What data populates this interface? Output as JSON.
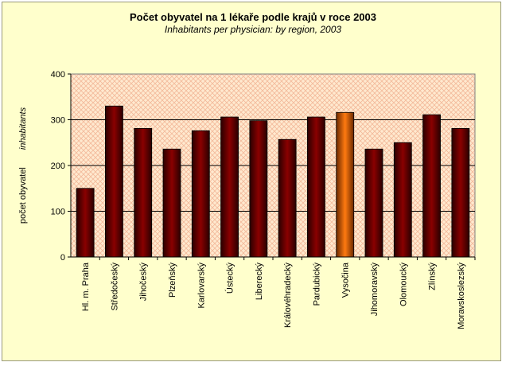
{
  "chart_data": {
    "type": "bar",
    "title": "Počet obyvatel na 1 lékaře podle krajů v roce 2003",
    "subtitle": "Inhabitants per physician: by region, 2003",
    "ylabel": "počet obyvatel",
    "ylabel_en": "inhabitants",
    "ylim": [
      0,
      400
    ],
    "yticks": [
      0,
      100,
      200,
      300,
      400
    ],
    "grid": true,
    "categories": [
      "Hl. m. Praha",
      "Středočeský",
      "Jihočeský",
      "Plzeňský",
      "Karlovarský",
      "Ústecký",
      "Liberecký",
      "Královéhradecký",
      "Pardubický",
      "Vysočina",
      "Jihomoravský",
      "Olomoucký",
      "Zlínský",
      "Moravskoslezský"
    ],
    "values": [
      150,
      330,
      281,
      236,
      276,
      306,
      298,
      257,
      306,
      316,
      236,
      250,
      311,
      281
    ],
    "highlight_category": "Vysočina",
    "colors": {
      "bar": "#6a0000",
      "highlight": "#ff7a10",
      "plot_background": "#ffe8cc",
      "page_background": "#ffffcc"
    }
  }
}
